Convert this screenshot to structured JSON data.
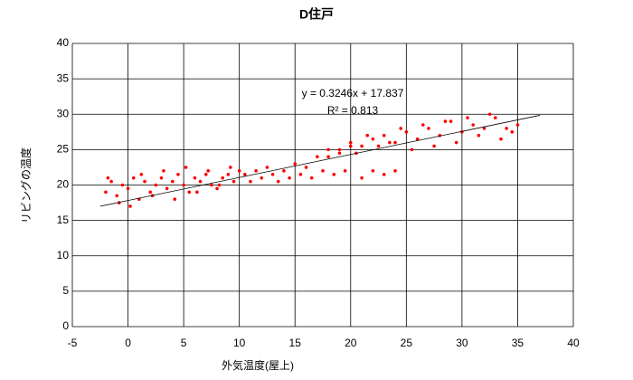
{
  "chart_data": {
    "type": "scatter",
    "title": "D住戸",
    "x_label": "外気温度(屋上)",
    "y_label": "リビングの温度",
    "annotations": [
      "y = 0.3246x + 17.837",
      "R² = 0.813"
    ],
    "xlim": [
      -5,
      40
    ],
    "xticks": [
      -5,
      0,
      5,
      10,
      15,
      20,
      25,
      30,
      35,
      40
    ],
    "ylim": [
      0,
      40
    ],
    "yticks": [
      0,
      5,
      10,
      15,
      20,
      25,
      30,
      35,
      40
    ],
    "grid": true,
    "color": "#ff0000",
    "x": [
      -2,
      -1.5,
      -1,
      -0.5,
      0,
      0.5,
      1,
      1.5,
      2,
      2.5,
      3,
      3.5,
      4,
      4.5,
      5,
      5.5,
      6,
      6.5,
      7,
      7.5,
      8,
      8.5,
      9,
      9.5,
      10,
      -1.8,
      -0.8,
      0.2,
      1.2,
      2.2,
      3.2,
      4.2,
      5.2,
      6.2,
      7.2,
      8.2,
      9.2,
      10.5,
      11,
      11.5,
      12,
      12.5,
      13,
      13.5,
      14,
      14.5,
      15,
      15.5,
      16,
      16.5,
      17,
      17.5,
      18,
      18.5,
      19,
      19.5,
      20,
      21,
      22,
      23,
      24,
      18,
      19,
      20,
      21,
      22,
      23,
      24,
      25,
      26,
      27,
      28,
      29,
      30,
      31,
      32,
      33,
      34,
      35,
      20.5,
      21.5,
      22.5,
      23.5,
      24.5,
      25.5,
      26.5,
      27.5,
      28.5,
      29.5,
      30.5,
      31.5,
      32.5,
      33.5,
      34.5
    ],
    "values": [
      19,
      20.5,
      18.5,
      20,
      19.5,
      21,
      18,
      20.5,
      19,
      20,
      21,
      19.5,
      20.5,
      21.5,
      20,
      19,
      21,
      20.5,
      21.5,
      20,
      19.5,
      21,
      21.5,
      20.5,
      22,
      21,
      17.5,
      17,
      21.5,
      18.5,
      22,
      18,
      22.5,
      19,
      22,
      20,
      22.5,
      21.5,
      20.5,
      22,
      21,
      22.5,
      21.5,
      20.5,
      22,
      21,
      23,
      21.5,
      22.5,
      21,
      24,
      22,
      25,
      21.5,
      24.5,
      22,
      25.5,
      21,
      22,
      21.5,
      22,
      24,
      25,
      26,
      25.5,
      26.5,
      27,
      26,
      27.5,
      26.5,
      28,
      27,
      29,
      27.5,
      28.5,
      28,
      29.5,
      28,
      28.5,
      24.5,
      27,
      25.5,
      26,
      28,
      25,
      28.5,
      25.5,
      29,
      26,
      29.5,
      27,
      30,
      26.5,
      27.5
    ],
    "trendline": {
      "x": [
        -2.5,
        37
      ],
      "values": [
        17.0,
        29.85
      ],
      "color": "#000000"
    }
  }
}
